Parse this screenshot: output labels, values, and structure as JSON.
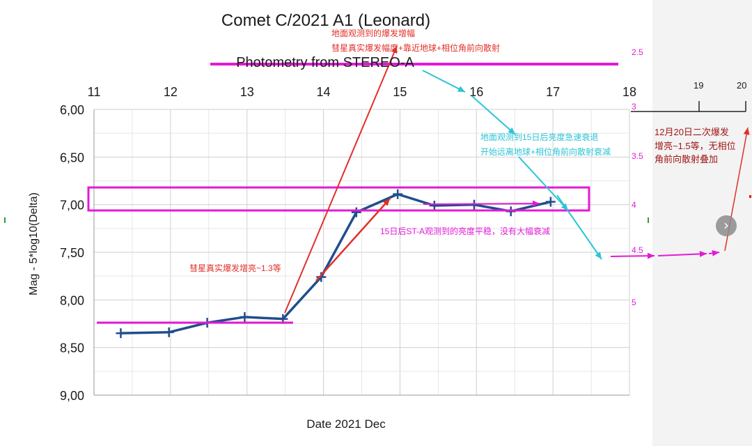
{
  "colors": {
    "series": "#1f4e8c",
    "magenta": "#e21ad6",
    "red": "#e0302a",
    "cyan": "#2bc4d6",
    "darkred": "#a01818",
    "grid": "#cfcfcf"
  },
  "chart_data": {
    "type": "line",
    "title": "Comet C/2021 A1 (Leonard)",
    "subtitle": "Photometry from STEREO-A",
    "xlabel": "Date 2021 Dec",
    "ylabel": "Mag - 5*log10(Delta)",
    "xlim": [
      11,
      18
    ],
    "ylim": [
      6.0,
      9.0
    ],
    "y_inverted": true,
    "x_ticks": [
      "11",
      "12",
      "13",
      "14",
      "15",
      "16",
      "17",
      "18"
    ],
    "y_ticks": [
      "6,00",
      "6,50",
      "7,00",
      "7,50",
      "8,00",
      "8,50",
      "9,00"
    ],
    "grid": true,
    "series": [
      {
        "x": [
          11.35,
          11.98,
          12.48,
          12.97,
          13.47,
          13.97,
          14.43,
          14.97,
          15.45,
          15.97,
          16.45,
          16.97
        ],
        "y": [
          8.35,
          8.34,
          8.24,
          8.18,
          8.2,
          7.76,
          7.08,
          6.89,
          7.01,
          7.0,
          7.07,
          6.97
        ]
      }
    ],
    "right_axis_ticks": [
      "2.5",
      "3",
      "3.5",
      "4",
      "4.5",
      "5"
    ],
    "extension_axis_ticks": [
      "19",
      "20"
    ]
  },
  "annotations": {
    "ground_outburst": "地面观测到的爆发增幅",
    "ground_outburst_cause": "彗星真实爆发幅度+靠近地球+相位角前向散射",
    "ground_decline_1": "地面观测到15日后亮度急速衰退",
    "ground_decline_2": "开始远离地球+相位角前向散射衰减",
    "sta_stable": "15日后ST-A观测到的亮度平稳，没有大幅衰减",
    "true_outburst": "彗星真实爆发增亮~1.3等",
    "second_outburst_1": "12月20日二次爆发",
    "second_outburst_2": "增亮~1.5等，无相位",
    "second_outburst_3": "角前向散射叠加"
  },
  "ui": {
    "next_icon_glyph": "›"
  }
}
